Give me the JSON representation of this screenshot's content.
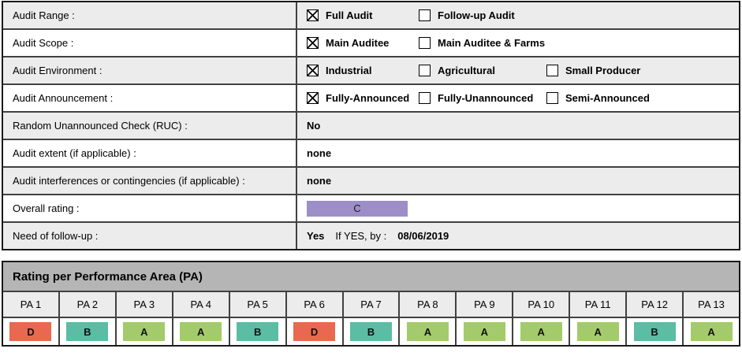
{
  "form": {
    "rows": [
      {
        "label": "Audit Range :",
        "options": [
          {
            "label": "Full Audit",
            "checked": true
          },
          {
            "label": "Follow-up Audit",
            "checked": false
          }
        ]
      },
      {
        "label": "Audit Scope :",
        "options": [
          {
            "label": "Main Auditee",
            "checked": true
          },
          {
            "label": "Main Auditee & Farms",
            "checked": false
          }
        ]
      },
      {
        "label": "Audit Environment :",
        "options": [
          {
            "label": "Industrial",
            "checked": true
          },
          {
            "label": "Agricultural",
            "checked": false
          },
          {
            "label": "Small Producer",
            "checked": false
          }
        ]
      },
      {
        "label": "Audit Announcement :",
        "options": [
          {
            "label": "Fully-Announced",
            "checked": true
          },
          {
            "label": "Fully-Unannounced",
            "checked": false
          },
          {
            "label": "Semi-Announced",
            "checked": false
          }
        ]
      },
      {
        "label": "Random Unannounced Check (RUC) :",
        "value": "No"
      },
      {
        "label": "Audit extent (if applicable) :",
        "value": "none"
      },
      {
        "label": "Audit interferences or contingencies (if applicable) :",
        "value": "none"
      },
      {
        "label": "Overall rating :",
        "rating": "C"
      },
      {
        "label": "Need of follow-up :",
        "value": "Yes",
        "if_yes_label": "If YES, by :",
        "date": "08/06/2019"
      }
    ]
  },
  "pa": {
    "title": "Rating per Performance Area (PA)",
    "columns": [
      "PA 1",
      "PA 2",
      "PA 3",
      "PA 4",
      "PA 5",
      "PA 6",
      "PA 7",
      "PA 8",
      "PA 9",
      "PA 10",
      "PA 11",
      "PA 12",
      "PA 13"
    ],
    "ratings": [
      "D",
      "B",
      "A",
      "A",
      "B",
      "D",
      "B",
      "A",
      "A",
      "A",
      "A",
      "B",
      "A"
    ]
  },
  "colors": {
    "A": "#a3cb6b",
    "B": "#5abda4",
    "C": "#9d8ec7",
    "D": "#e8694f"
  }
}
